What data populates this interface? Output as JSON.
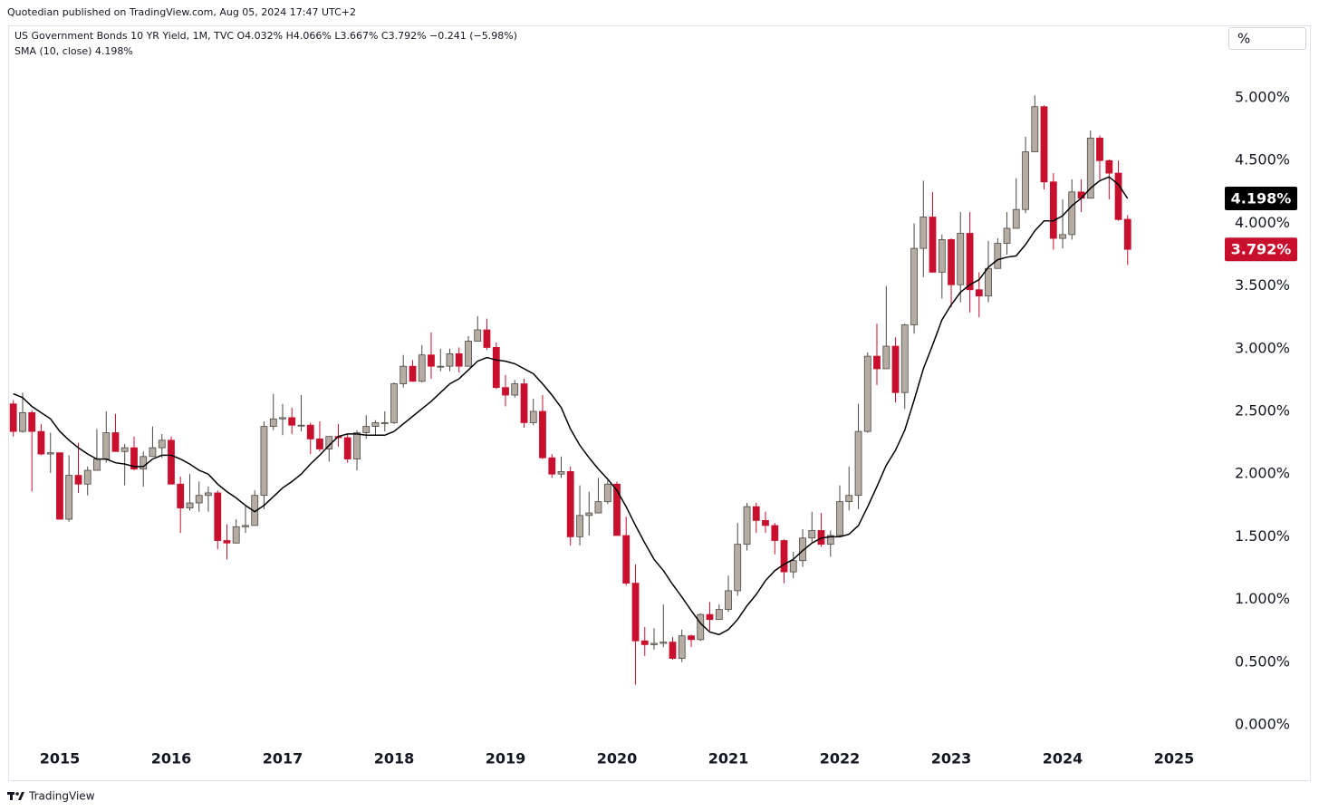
{
  "header": {
    "published": "Quotedian published on TradingView.com, Aug 05, 2024 17:47 UTC+2",
    "legend": "US Government Bonds 10 YR Yield, 1M, TVC  O4.032%  H4.066%  L3.667%  C3.792%  −0.241 (−5.98%)",
    "sma_legend": "SMA (10, close)  4.198%",
    "scale_button": "%"
  },
  "footer": {
    "brand": "TradingView"
  },
  "chart_data": {
    "type": "candlestick",
    "x": [
      2014.583,
      2014.667,
      2014.75,
      2014.833,
      2014.917,
      2015,
      2015.083,
      2015.167,
      2015.25,
      2015.333,
      2015.417,
      2015.5,
      2015.583,
      2015.667,
      2015.75,
      2015.833,
      2015.917,
      2016,
      2016.083,
      2016.167,
      2016.25,
      2016.333,
      2016.417,
      2016.5,
      2016.583,
      2016.667,
      2016.75,
      2016.833,
      2016.917,
      2017,
      2017.083,
      2017.167,
      2017.25,
      2017.333,
      2017.417,
      2017.5,
      2017.583,
      2017.667,
      2017.75,
      2017.833,
      2017.917,
      2018,
      2018.083,
      2018.167,
      2018.25,
      2018.333,
      2018.417,
      2018.5,
      2018.583,
      2018.667,
      2018.75,
      2018.833,
      2018.917,
      2019,
      2019.083,
      2019.167,
      2019.25,
      2019.333,
      2019.417,
      2019.5,
      2019.583,
      2019.667,
      2019.75,
      2019.833,
      2019.917,
      2020,
      2020.083,
      2020.167,
      2020.25,
      2020.333,
      2020.417,
      2020.5,
      2020.583,
      2020.667,
      2020.75,
      2020.833,
      2020.917,
      2021,
      2021.083,
      2021.167,
      2021.25,
      2021.333,
      2021.417,
      2021.5,
      2021.583,
      2021.667,
      2021.75,
      2021.833,
      2021.917,
      2022,
      2022.083,
      2022.167,
      2022.25,
      2022.333,
      2022.417,
      2022.5,
      2022.583,
      2022.667,
      2022.75,
      2022.833,
      2022.917,
      2023,
      2023.083,
      2023.167,
      2023.25,
      2023.333,
      2023.417,
      2023.5,
      2023.583,
      2023.667,
      2023.75,
      2023.833,
      2023.917,
      2024,
      2024.083,
      2024.167,
      2024.25,
      2024.333,
      2024.417,
      2024.5,
      2024.583
    ],
    "open": [
      2.56,
      2.34,
      2.49,
      2.34,
      2.16,
      2.17,
      1.64,
      1.99,
      1.92,
      2.03,
      2.12,
      2.33,
      2.18,
      2.21,
      2.04,
      2.14,
      2.21,
      2.27,
      1.92,
      1.73,
      1.77,
      1.83,
      1.85,
      1.47,
      1.45,
      1.58,
      1.59,
      1.83,
      2.38,
      2.44,
      2.45,
      2.39,
      2.39,
      2.28,
      2.2,
      2.3,
      2.29,
      2.12,
      2.33,
      2.38,
      2.41,
      2.41,
      2.72,
      2.86,
      2.74,
      2.95,
      2.86,
      2.86,
      2.96,
      2.86,
      3.06,
      3.15,
      3.01,
      2.69,
      2.63,
      2.72,
      2.41,
      2.5,
      2.13,
      2.0,
      2.02,
      1.5,
      1.67,
      1.69,
      1.78,
      1.92,
      1.51,
      1.13,
      0.67,
      0.64,
      0.65,
      0.66,
      0.53,
      0.71,
      0.68,
      0.88,
      0.84,
      0.92,
      1.07,
      1.44,
      1.74,
      1.63,
      1.59,
      1.47,
      1.22,
      1.31,
      1.49,
      1.55,
      1.44,
      1.51,
      1.78,
      1.83,
      2.34,
      2.94,
      2.84,
      3.02,
      2.65,
      3.19,
      3.8,
      4.05,
      3.61,
      3.87,
      3.51,
      3.92,
      3.47,
      3.42,
      3.64,
      3.84,
      3.96,
      4.11,
      4.57,
      4.93,
      4.33,
      3.88,
      3.91,
      4.25,
      4.2,
      4.68,
      4.5,
      4.4,
      4.032
    ],
    "high": [
      2.59,
      2.65,
      2.51,
      2.4,
      2.33,
      2.17,
      2.15,
      2.25,
      2.06,
      2.36,
      2.5,
      2.48,
      2.24,
      2.3,
      2.18,
      2.38,
      2.32,
      2.3,
      1.98,
      2.0,
      1.94,
      1.9,
      1.87,
      1.6,
      1.64,
      1.75,
      1.87,
      2.42,
      2.64,
      2.56,
      2.53,
      2.63,
      2.41,
      2.42,
      2.3,
      2.4,
      2.32,
      2.35,
      2.47,
      2.43,
      2.5,
      2.73,
      2.95,
      2.91,
      3.03,
      3.13,
      3.0,
      3.0,
      3.01,
      3.1,
      3.26,
      3.24,
      3.05,
      2.79,
      2.75,
      2.76,
      2.6,
      2.63,
      2.16,
      2.14,
      2.06,
      1.91,
      1.86,
      1.97,
      1.95,
      1.94,
      1.66,
      1.28,
      0.78,
      0.77,
      0.96,
      0.7,
      0.76,
      0.72,
      0.89,
      0.98,
      0.96,
      1.19,
      1.61,
      1.77,
      1.77,
      1.7,
      1.61,
      1.48,
      1.38,
      1.56,
      1.7,
      1.69,
      1.55,
      1.91,
      2.06,
      2.56,
      2.97,
      3.2,
      3.5,
      3.09,
      3.2,
      4.0,
      4.34,
      4.25,
      3.91,
      3.88,
      4.09,
      4.09,
      3.61,
      3.86,
      3.88,
      4.09,
      4.36,
      4.69,
      5.02,
      4.94,
      4.4,
      4.19,
      4.35,
      4.35,
      4.74,
      4.7,
      4.51,
      4.5,
      4.066
    ],
    "low": [
      2.3,
      2.33,
      1.86,
      2.15,
      2.01,
      1.64,
      1.62,
      1.85,
      1.83,
      2.03,
      2.09,
      2.18,
      1.91,
      2.03,
      1.9,
      2.14,
      2.13,
      1.92,
      1.53,
      1.71,
      1.7,
      1.7,
      1.4,
      1.32,
      1.45,
      1.53,
      1.59,
      1.72,
      2.35,
      2.31,
      2.32,
      2.34,
      2.16,
      2.18,
      2.1,
      2.22,
      2.09,
      2.03,
      2.28,
      2.31,
      2.34,
      2.4,
      2.69,
      2.74,
      2.73,
      2.76,
      2.82,
      2.82,
      2.81,
      2.86,
      3.06,
      2.99,
      2.68,
      2.54,
      2.61,
      2.37,
      2.39,
      2.12,
      1.97,
      1.97,
      1.43,
      1.43,
      1.51,
      1.69,
      1.76,
      1.51,
      1.11,
      0.32,
      0.55,
      0.6,
      0.62,
      0.52,
      0.5,
      0.62,
      0.67,
      0.75,
      0.84,
      0.9,
      1.03,
      1.39,
      1.53,
      1.53,
      1.36,
      1.13,
      1.17,
      1.26,
      1.46,
      1.42,
      1.34,
      1.5,
      1.71,
      1.72,
      2.33,
      2.71,
      2.84,
      2.57,
      2.52,
      3.12,
      3.57,
      3.61,
      3.4,
      3.33,
      3.37,
      3.29,
      3.25,
      3.37,
      3.64,
      3.75,
      3.96,
      4.08,
      4.57,
      4.27,
      3.79,
      3.8,
      3.87,
      4.09,
      4.2,
      4.35,
      4.19,
      4.02,
      3.667
    ],
    "close": [
      2.34,
      2.49,
      2.34,
      2.16,
      2.17,
      1.64,
      1.99,
      1.92,
      2.03,
      2.12,
      2.33,
      2.18,
      2.21,
      2.04,
      2.14,
      2.21,
      2.27,
      1.92,
      1.73,
      1.77,
      1.83,
      1.85,
      1.47,
      1.45,
      1.58,
      1.59,
      1.83,
      2.38,
      2.44,
      2.45,
      2.39,
      2.39,
      2.28,
      2.2,
      2.3,
      2.29,
      2.12,
      2.33,
      2.38,
      2.41,
      2.41,
      2.72,
      2.86,
      2.74,
      2.95,
      2.86,
      2.86,
      2.96,
      2.86,
      3.06,
      3.15,
      3.01,
      2.69,
      2.63,
      2.72,
      2.41,
      2.5,
      2.13,
      2.0,
      2.02,
      1.5,
      1.67,
      1.69,
      1.78,
      1.92,
      1.51,
      1.13,
      0.67,
      0.64,
      0.65,
      0.66,
      0.53,
      0.71,
      0.68,
      0.88,
      0.84,
      0.92,
      1.07,
      1.44,
      1.74,
      1.63,
      1.59,
      1.47,
      1.22,
      1.31,
      1.49,
      1.55,
      1.44,
      1.51,
      1.78,
      1.83,
      2.34,
      2.94,
      2.84,
      3.02,
      2.65,
      3.19,
      3.8,
      4.05,
      3.61,
      3.87,
      3.51,
      3.92,
      3.47,
      3.42,
      3.64,
      3.84,
      3.96,
      4.11,
      4.57,
      4.93,
      4.33,
      3.88,
      3.91,
      4.25,
      4.2,
      4.68,
      4.5,
      4.4,
      4.03,
      3.792
    ],
    "up_color": "#b5aca3",
    "down_color": "#c8102e",
    "outline_color": "#4d4843",
    "last_label": {
      "value": 3.792,
      "label": "3.792%"
    },
    "sma": {
      "color": "#000000",
      "last_label": {
        "value": 4.198,
        "label": "4.198%"
      },
      "values": [
        2.64,
        2.61,
        2.54,
        2.49,
        2.44,
        2.34,
        2.27,
        2.21,
        2.16,
        2.12,
        2.12,
        2.09,
        2.08,
        2.06,
        2.06,
        2.12,
        2.15,
        2.15,
        2.12,
        2.08,
        2.03,
        2.0,
        1.92,
        1.86,
        1.81,
        1.75,
        1.7,
        1.75,
        1.82,
        1.89,
        1.94,
        2.0,
        2.08,
        2.15,
        2.23,
        2.3,
        2.32,
        2.32,
        2.31,
        2.31,
        2.31,
        2.34,
        2.4,
        2.46,
        2.52,
        2.58,
        2.65,
        2.72,
        2.76,
        2.83,
        2.9,
        2.93,
        2.91,
        2.9,
        2.88,
        2.84,
        2.8,
        2.72,
        2.63,
        2.53,
        2.36,
        2.23,
        2.13,
        2.04,
        1.96,
        1.87,
        1.74,
        1.59,
        1.45,
        1.32,
        1.23,
        1.12,
        1.02,
        0.91,
        0.81,
        0.74,
        0.72,
        0.76,
        0.84,
        0.95,
        1.04,
        1.15,
        1.23,
        1.28,
        1.32,
        1.39,
        1.45,
        1.49,
        1.5,
        1.5,
        1.52,
        1.59,
        1.74,
        1.9,
        2.07,
        2.19,
        2.35,
        2.59,
        2.84,
        3.03,
        3.23,
        3.35,
        3.45,
        3.51,
        3.55,
        3.65,
        3.71,
        3.73,
        3.74,
        3.83,
        3.94,
        4.02,
        4.02,
        4.06,
        4.14,
        4.2,
        4.28,
        4.34,
        4.37,
        4.31,
        4.198
      ]
    },
    "xlim": [
      2014.545,
      2025.398
    ],
    "xticks": [
      2015,
      2016,
      2017,
      2018,
      2019,
      2020,
      2021,
      2022,
      2023,
      2024,
      2025
    ],
    "ylim": [
      -0.434,
      5.564
    ],
    "yticks": [
      {
        "value": 0,
        "label": "0.000%"
      },
      {
        "value": 0.5,
        "label": "0.500%"
      },
      {
        "value": 1,
        "label": "1.000%"
      },
      {
        "value": 1.5,
        "label": "1.500%"
      },
      {
        "value": 2,
        "label": "2.000%"
      },
      {
        "value": 2.5,
        "label": "2.500%"
      },
      {
        "value": 3,
        "label": "3.000%"
      },
      {
        "value": 3.5,
        "label": "3.500%"
      },
      {
        "value": 4,
        "label": "4.000%"
      },
      {
        "value": 4.5,
        "label": "4.500%"
      },
      {
        "value": 5,
        "label": "5.000%"
      }
    ]
  }
}
